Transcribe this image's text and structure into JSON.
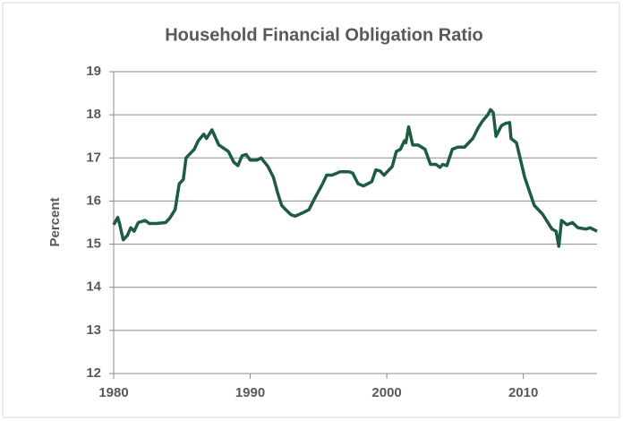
{
  "chart_data": {
    "type": "line",
    "title": "Household Financial Obligation Ratio",
    "y_label": "Percent",
    "x": [
      1980,
      1980.3,
      1980.45,
      1980.7,
      1981,
      1981.25,
      1981.5,
      1981.8,
      1982.3,
      1982.6,
      1983.1,
      1983.8,
      1984.1,
      1984.5,
      1984.8,
      1985.1,
      1985.3,
      1985.6,
      1985.9,
      1986.2,
      1986.6,
      1986.8,
      1987.2,
      1987.7,
      1988.4,
      1988.8,
      1989.1,
      1989.4,
      1989.7,
      1990,
      1990.5,
      1990.8,
      1991.3,
      1991.7,
      1992,
      1992.3,
      1992.6,
      1993,
      1993.3,
      1993.8,
      1994.3,
      1994.7,
      1995.3,
      1995.6,
      1996,
      1996.6,
      1997.2,
      1997.5,
      1997.9,
      1998.3,
      1998.9,
      1999.2,
      1999.5,
      1999.8,
      2000.4,
      2000.7,
      2001,
      2001.3,
      2001.4,
      2001.6,
      2001.9,
      2002.3,
      2002.8,
      2003.2,
      2003.6,
      2003.9,
      2004.1,
      2004.4,
      2004.8,
      2005.2,
      2005.7,
      2006.3,
      2006.7,
      2007,
      2007.4,
      2007.6,
      2007.8,
      2008,
      2008.4,
      2008.7,
      2009,
      2009.1,
      2009.5,
      2009.8,
      2010.1,
      2010.8,
      2011.4,
      2012.1,
      2012.4,
      2012.6,
      2012.8,
      2013.2,
      2013.6,
      2014,
      2014.6,
      2014.9,
      2015.4
    ],
    "series": [
      {
        "name": "Household Financial Obligation Ratio",
        "color": "#1e5c40",
        "values": [
          15.45,
          15.62,
          15.45,
          15.1,
          15.2,
          15.38,
          15.3,
          15.5,
          15.55,
          15.48,
          15.48,
          15.5,
          15.6,
          15.8,
          16.4,
          16.5,
          17.0,
          17.1,
          17.2,
          17.4,
          17.55,
          17.45,
          17.65,
          17.3,
          17.15,
          16.9,
          16.82,
          17.05,
          17.08,
          16.95,
          16.95,
          17.0,
          16.8,
          16.55,
          16.2,
          15.9,
          15.8,
          15.68,
          15.65,
          15.72,
          15.8,
          16.05,
          16.4,
          16.6,
          16.6,
          16.68,
          16.68,
          16.65,
          16.4,
          16.35,
          16.45,
          16.72,
          16.7,
          16.6,
          16.8,
          17.15,
          17.2,
          17.4,
          17.35,
          17.72,
          17.3,
          17.3,
          17.2,
          16.85,
          16.85,
          16.78,
          16.85,
          16.82,
          17.2,
          17.25,
          17.25,
          17.45,
          17.7,
          17.85,
          18.0,
          18.12,
          18.05,
          17.5,
          17.75,
          17.8,
          17.82,
          17.45,
          17.35,
          16.95,
          16.55,
          15.9,
          15.7,
          15.35,
          15.3,
          14.95,
          15.55,
          15.45,
          15.5,
          15.38,
          15.35,
          15.38,
          15.3
        ]
      }
    ],
    "xlim": [
      1980,
      2015.4
    ],
    "xticks": [
      1980,
      1990,
      2000,
      2010
    ],
    "ylim": [
      12,
      19
    ],
    "yticks": [
      12,
      13,
      14,
      15,
      16,
      17,
      18,
      19
    ],
    "grid": true
  }
}
